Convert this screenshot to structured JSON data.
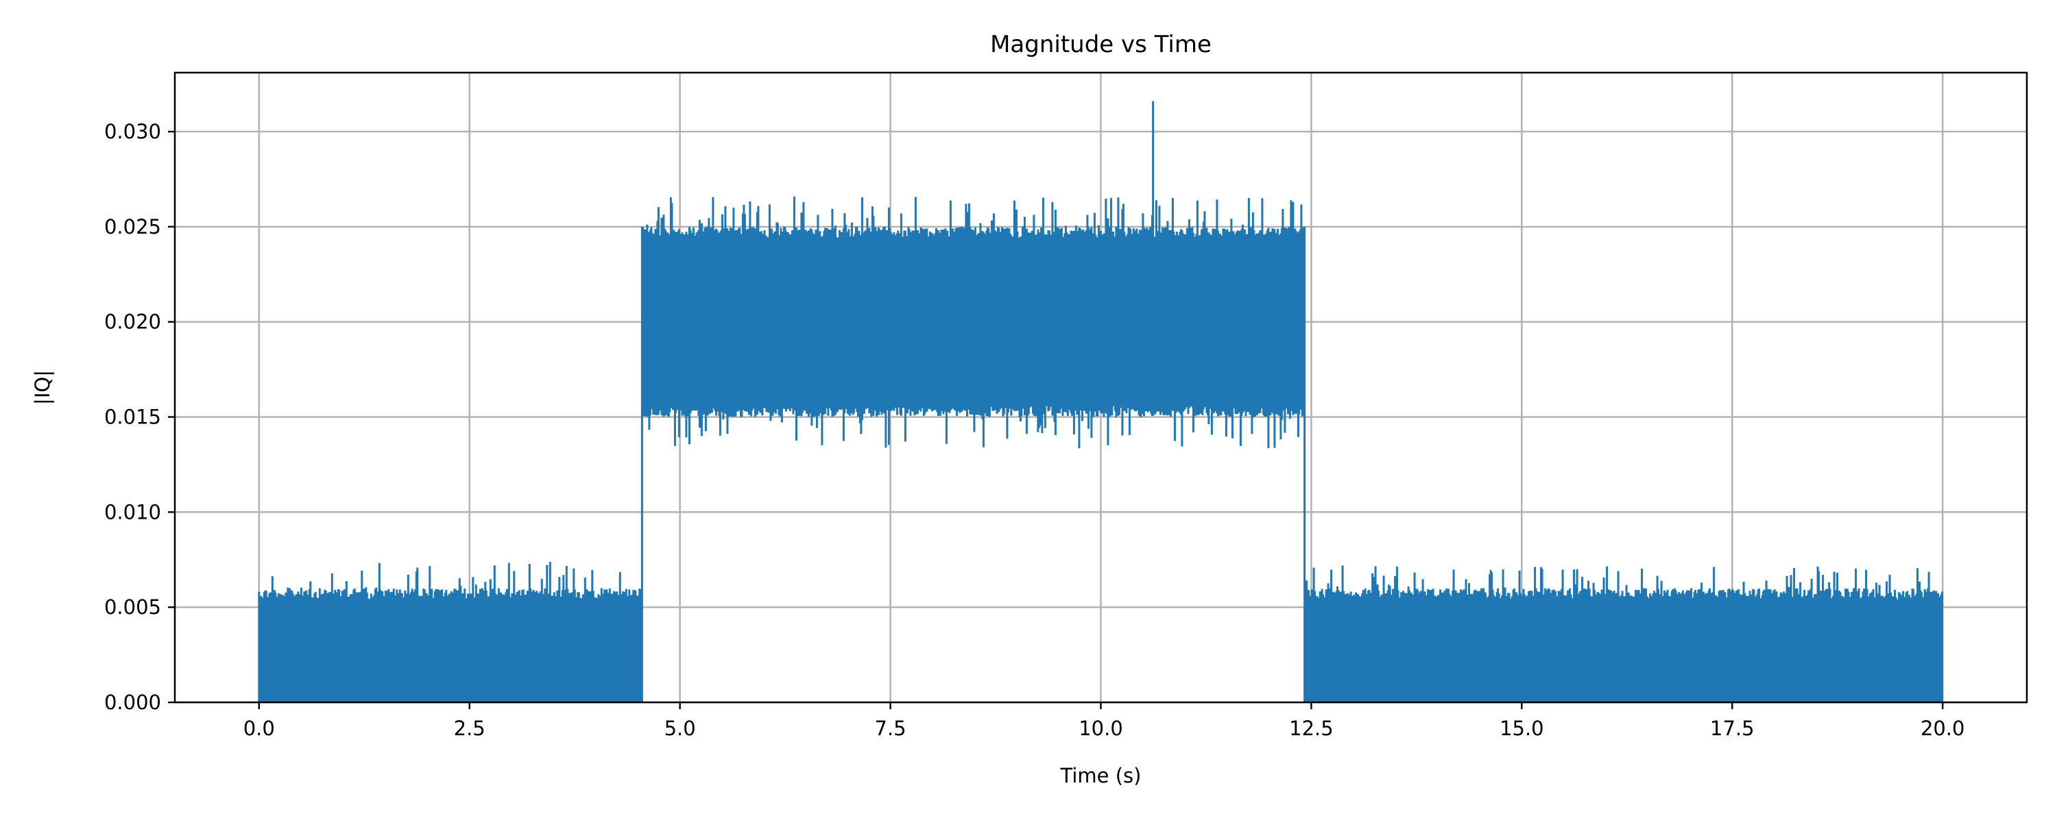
{
  "chart_data": {
    "type": "line",
    "title": "Magnitude vs Time",
    "xlabel": "Time (s)",
    "ylabel": "|IQ|",
    "xlim": [
      -1,
      21
    ],
    "ylim": [
      0,
      0.0331
    ],
    "xticks": [
      "0.0",
      "2.5",
      "5.0",
      "7.5",
      "10.0",
      "12.5",
      "15.0",
      "17.5",
      "20.0"
    ],
    "xtick_values": [
      0,
      2.5,
      5,
      7.5,
      10,
      12.5,
      15,
      17.5,
      20
    ],
    "yticks": [
      "0.000",
      "0.005",
      "0.010",
      "0.015",
      "0.020",
      "0.025",
      "0.030"
    ],
    "ytick_values": [
      0,
      0.005,
      0.01,
      0.015,
      0.02,
      0.025,
      0.03
    ],
    "grid": true,
    "line_color": "#1f77b4",
    "series": [
      {
        "segments": [
          {
            "t_start": 0.0,
            "t_end": 4.55,
            "min": 0.0,
            "max_typical": 0.006,
            "max_peak": 0.0075
          },
          {
            "t_start": 4.55,
            "t_end": 12.42,
            "min_typical": 0.015,
            "min_low": 0.0133,
            "max_typical": 0.025,
            "max_peak": 0.0266
          },
          {
            "t_start": 12.42,
            "t_end": 20.0,
            "min": 0.0,
            "max_typical": 0.006,
            "max_peak": 0.0072
          }
        ],
        "spikes": [
          {
            "t": 10.62,
            "value": 0.0316
          }
        ]
      }
    ]
  }
}
